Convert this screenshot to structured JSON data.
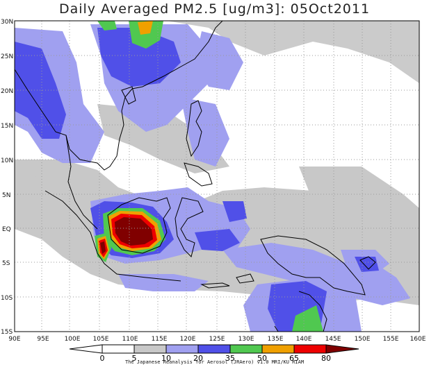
{
  "title": "Daily Averaged PM2.5 [ug/m3]: 05Oct2011",
  "credit": "The Japanese Reanalysis for Aerosol (JRAero) v1.0 MRI/KU RIAM",
  "lon_ticks": [
    "90E",
    "95E",
    "100E",
    "105E",
    "110E",
    "115E",
    "120E",
    "125E",
    "130E",
    "135E",
    "140E",
    "145E",
    "150E",
    "155E",
    "160E"
  ],
  "lat_ticks": [
    "30N",
    "25N",
    "20N",
    "15N",
    "10N",
    "5N",
    "EQ",
    "5S",
    "10S",
    "15S"
  ],
  "colorbar": {
    "labels": [
      "0",
      "5",
      "10",
      "20",
      "35",
      "50",
      "65",
      "80"
    ],
    "colors": [
      "#ffffff",
      "#c8c8c8",
      "#a0a0f0",
      "#5050e8",
      "#50c850",
      "#f0a000",
      "#ee0000",
      "#800000"
    ]
  }
}
